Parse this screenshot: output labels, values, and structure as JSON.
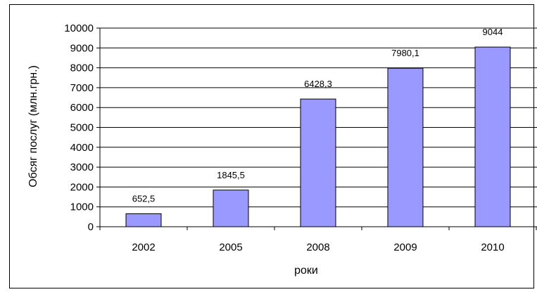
{
  "chart_data": {
    "type": "bar",
    "categories": [
      "2002",
      "2005",
      "2008",
      "2009",
      "2010"
    ],
    "values": [
      652.5,
      1845.5,
      6428.3,
      7980.1,
      9044
    ],
    "data_labels": [
      "652,5",
      "1845,5",
      "6428,3",
      "7980,1",
      "9044"
    ],
    "title": "",
    "xlabel": "роки",
    "ylabel": "Обсяг послуг (млн.грн.)",
    "ylim": [
      0,
      10000
    ],
    "yticks": [
      "0",
      "1000",
      "2000",
      "3000",
      "4000",
      "5000",
      "6000",
      "7000",
      "8000",
      "9000",
      "10000"
    ],
    "grid": true,
    "legend": "none",
    "colors": {
      "bar_fill": "#9999ff",
      "bar_stroke": "#000000",
      "grid": "#000000"
    }
  }
}
